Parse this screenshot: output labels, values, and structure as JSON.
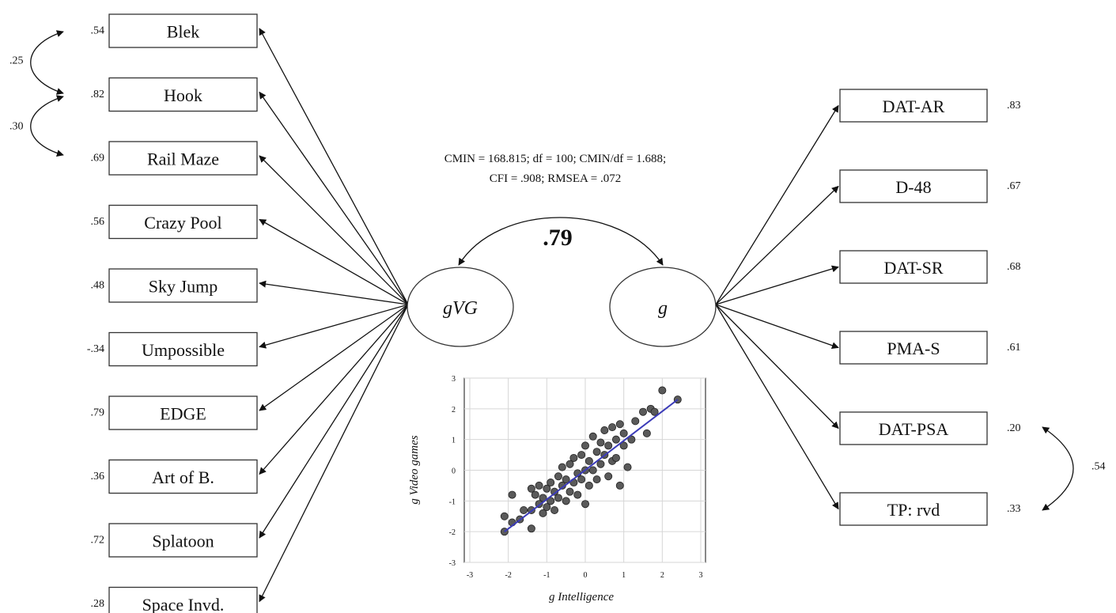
{
  "fit_stats": {
    "line1": "CMIN = 168.815; df = 100; CMIN/df = 1.688;",
    "line2": "CFI = .908; RMSEA = .072"
  },
  "latent": {
    "left": "gVG",
    "right": "g",
    "correlation": ".79"
  },
  "left_indicators": [
    {
      "label": "Blek",
      "loading": ".54"
    },
    {
      "label": "Hook",
      "loading": ".82"
    },
    {
      "label": "Rail Maze",
      "loading": ".69"
    },
    {
      "label": "Crazy Pool",
      "loading": ".56"
    },
    {
      "label": "Sky Jump",
      "loading": ".48"
    },
    {
      "label": "Umpossible",
      "loading": "-.34"
    },
    {
      "label": "EDGE",
      "loading": ".79"
    },
    {
      "label": "Art of B.",
      "loading": ".36"
    },
    {
      "label": "Splatoon",
      "loading": ".72"
    },
    {
      "label": "Space Invd.",
      "loading": ".28"
    }
  ],
  "right_indicators": [
    {
      "label": "DAT-AR",
      "loading": ".83"
    },
    {
      "label": "D-48",
      "loading": ".67"
    },
    {
      "label": "DAT-SR",
      "loading": ".68"
    },
    {
      "label": "PMA-S",
      "loading": ".61"
    },
    {
      "label": "DAT-PSA",
      "loading": ".20"
    },
    {
      "label": "TP: rvd",
      "loading": ".33"
    }
  ],
  "residual_correlations": {
    "blek_hook": ".25",
    "hook_railmaze": ".30",
    "datpsa_tprvd": ".54"
  },
  "chart_data": {
    "type": "scatter",
    "xlabel": "g Intelligence",
    "ylabel": "g Video games",
    "xlim": [
      -3,
      3
    ],
    "ylim": [
      -3,
      3
    ],
    "xticks": [
      "-3",
      "-2",
      "-1",
      "0",
      "1",
      "2",
      "3"
    ],
    "yticks": [
      "3",
      "2",
      "1",
      "0",
      "-1",
      "-2",
      "-3"
    ],
    "grid": true,
    "fit_line": {
      "x": [
        -2.1,
        2.4
      ],
      "y": [
        -2.0,
        2.3
      ],
      "color": "#3b3bb8"
    },
    "points": [
      [
        -2.1,
        -2.0
      ],
      [
        -2.1,
        -1.5
      ],
      [
        -1.9,
        -1.7
      ],
      [
        -1.9,
        -0.8
      ],
      [
        -1.7,
        -1.6
      ],
      [
        -1.6,
        -1.3
      ],
      [
        -1.4,
        -1.9
      ],
      [
        -1.4,
        -1.3
      ],
      [
        -1.4,
        -0.6
      ],
      [
        -1.3,
        -0.8
      ],
      [
        -1.2,
        -1.1
      ],
      [
        -1.2,
        -0.5
      ],
      [
        -1.1,
        -1.4
      ],
      [
        -1.1,
        -0.9
      ],
      [
        -1.0,
        -0.6
      ],
      [
        -1.0,
        -1.2
      ],
      [
        -0.9,
        -0.4
      ],
      [
        -0.9,
        -1.0
      ],
      [
        -0.8,
        -0.7
      ],
      [
        -0.8,
        -1.3
      ],
      [
        -0.7,
        -0.2
      ],
      [
        -0.7,
        -0.9
      ],
      [
        -0.6,
        -0.5
      ],
      [
        -0.6,
        0.1
      ],
      [
        -0.5,
        -1.0
      ],
      [
        -0.5,
        -0.3
      ],
      [
        -0.4,
        0.2
      ],
      [
        -0.4,
        -0.7
      ],
      [
        -0.3,
        -0.4
      ],
      [
        -0.3,
        0.4
      ],
      [
        -0.2,
        -0.1
      ],
      [
        -0.2,
        -0.8
      ],
      [
        -0.1,
        0.5
      ],
      [
        -0.1,
        -0.3
      ],
      [
        0.0,
        0.0
      ],
      [
        0.0,
        0.8
      ],
      [
        0.0,
        -1.1
      ],
      [
        0.1,
        0.3
      ],
      [
        0.1,
        -0.5
      ],
      [
        0.2,
        1.1
      ],
      [
        0.2,
        0.0
      ],
      [
        0.3,
        0.6
      ],
      [
        0.3,
        -0.3
      ],
      [
        0.4,
        0.9
      ],
      [
        0.4,
        0.2
      ],
      [
        0.5,
        1.3
      ],
      [
        0.5,
        0.5
      ],
      [
        0.6,
        -0.2
      ],
      [
        0.6,
        0.8
      ],
      [
        0.7,
        1.4
      ],
      [
        0.7,
        0.3
      ],
      [
        0.8,
        1.0
      ],
      [
        0.8,
        0.4
      ],
      [
        0.9,
        1.5
      ],
      [
        0.9,
        -0.5
      ],
      [
        1.0,
        1.2
      ],
      [
        1.0,
        0.8
      ],
      [
        1.1,
        0.1
      ],
      [
        1.2,
        1.0
      ],
      [
        1.3,
        1.6
      ],
      [
        1.5,
        1.9
      ],
      [
        1.6,
        1.2
      ],
      [
        1.7,
        2.0
      ],
      [
        1.8,
        1.9
      ],
      [
        2.0,
        2.6
      ],
      [
        2.4,
        2.3
      ]
    ]
  }
}
